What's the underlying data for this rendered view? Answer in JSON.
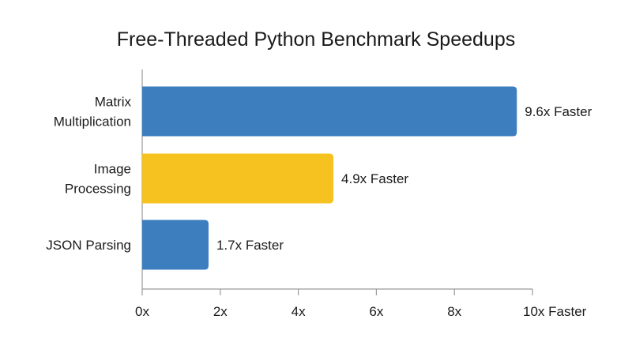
{
  "chart_data": {
    "type": "bar",
    "orientation": "horizontal",
    "title": "Free-Threaded Python Benchmark Speedups",
    "categories": [
      {
        "lines": [
          "Matrix",
          "Multiplication"
        ]
      },
      {
        "lines": [
          "Image",
          "Processing"
        ]
      },
      {
        "lines": [
          "JSON Parsing"
        ]
      }
    ],
    "values": [
      9.6,
      4.9,
      1.7
    ],
    "data_labels": [
      "9.6x Faster",
      "4.9x Faster",
      "1.7x Faster"
    ],
    "colors": [
      "#3d7ebf",
      "#f5c21f",
      "#3d7ebf"
    ],
    "xlim": [
      0,
      10
    ],
    "xticks": [
      0,
      2,
      4,
      6,
      8,
      10
    ],
    "xtick_labels": [
      "0x",
      "2x",
      "4x",
      "6x",
      "8x",
      "10x Faster"
    ],
    "grid": false,
    "legend": "none"
  }
}
